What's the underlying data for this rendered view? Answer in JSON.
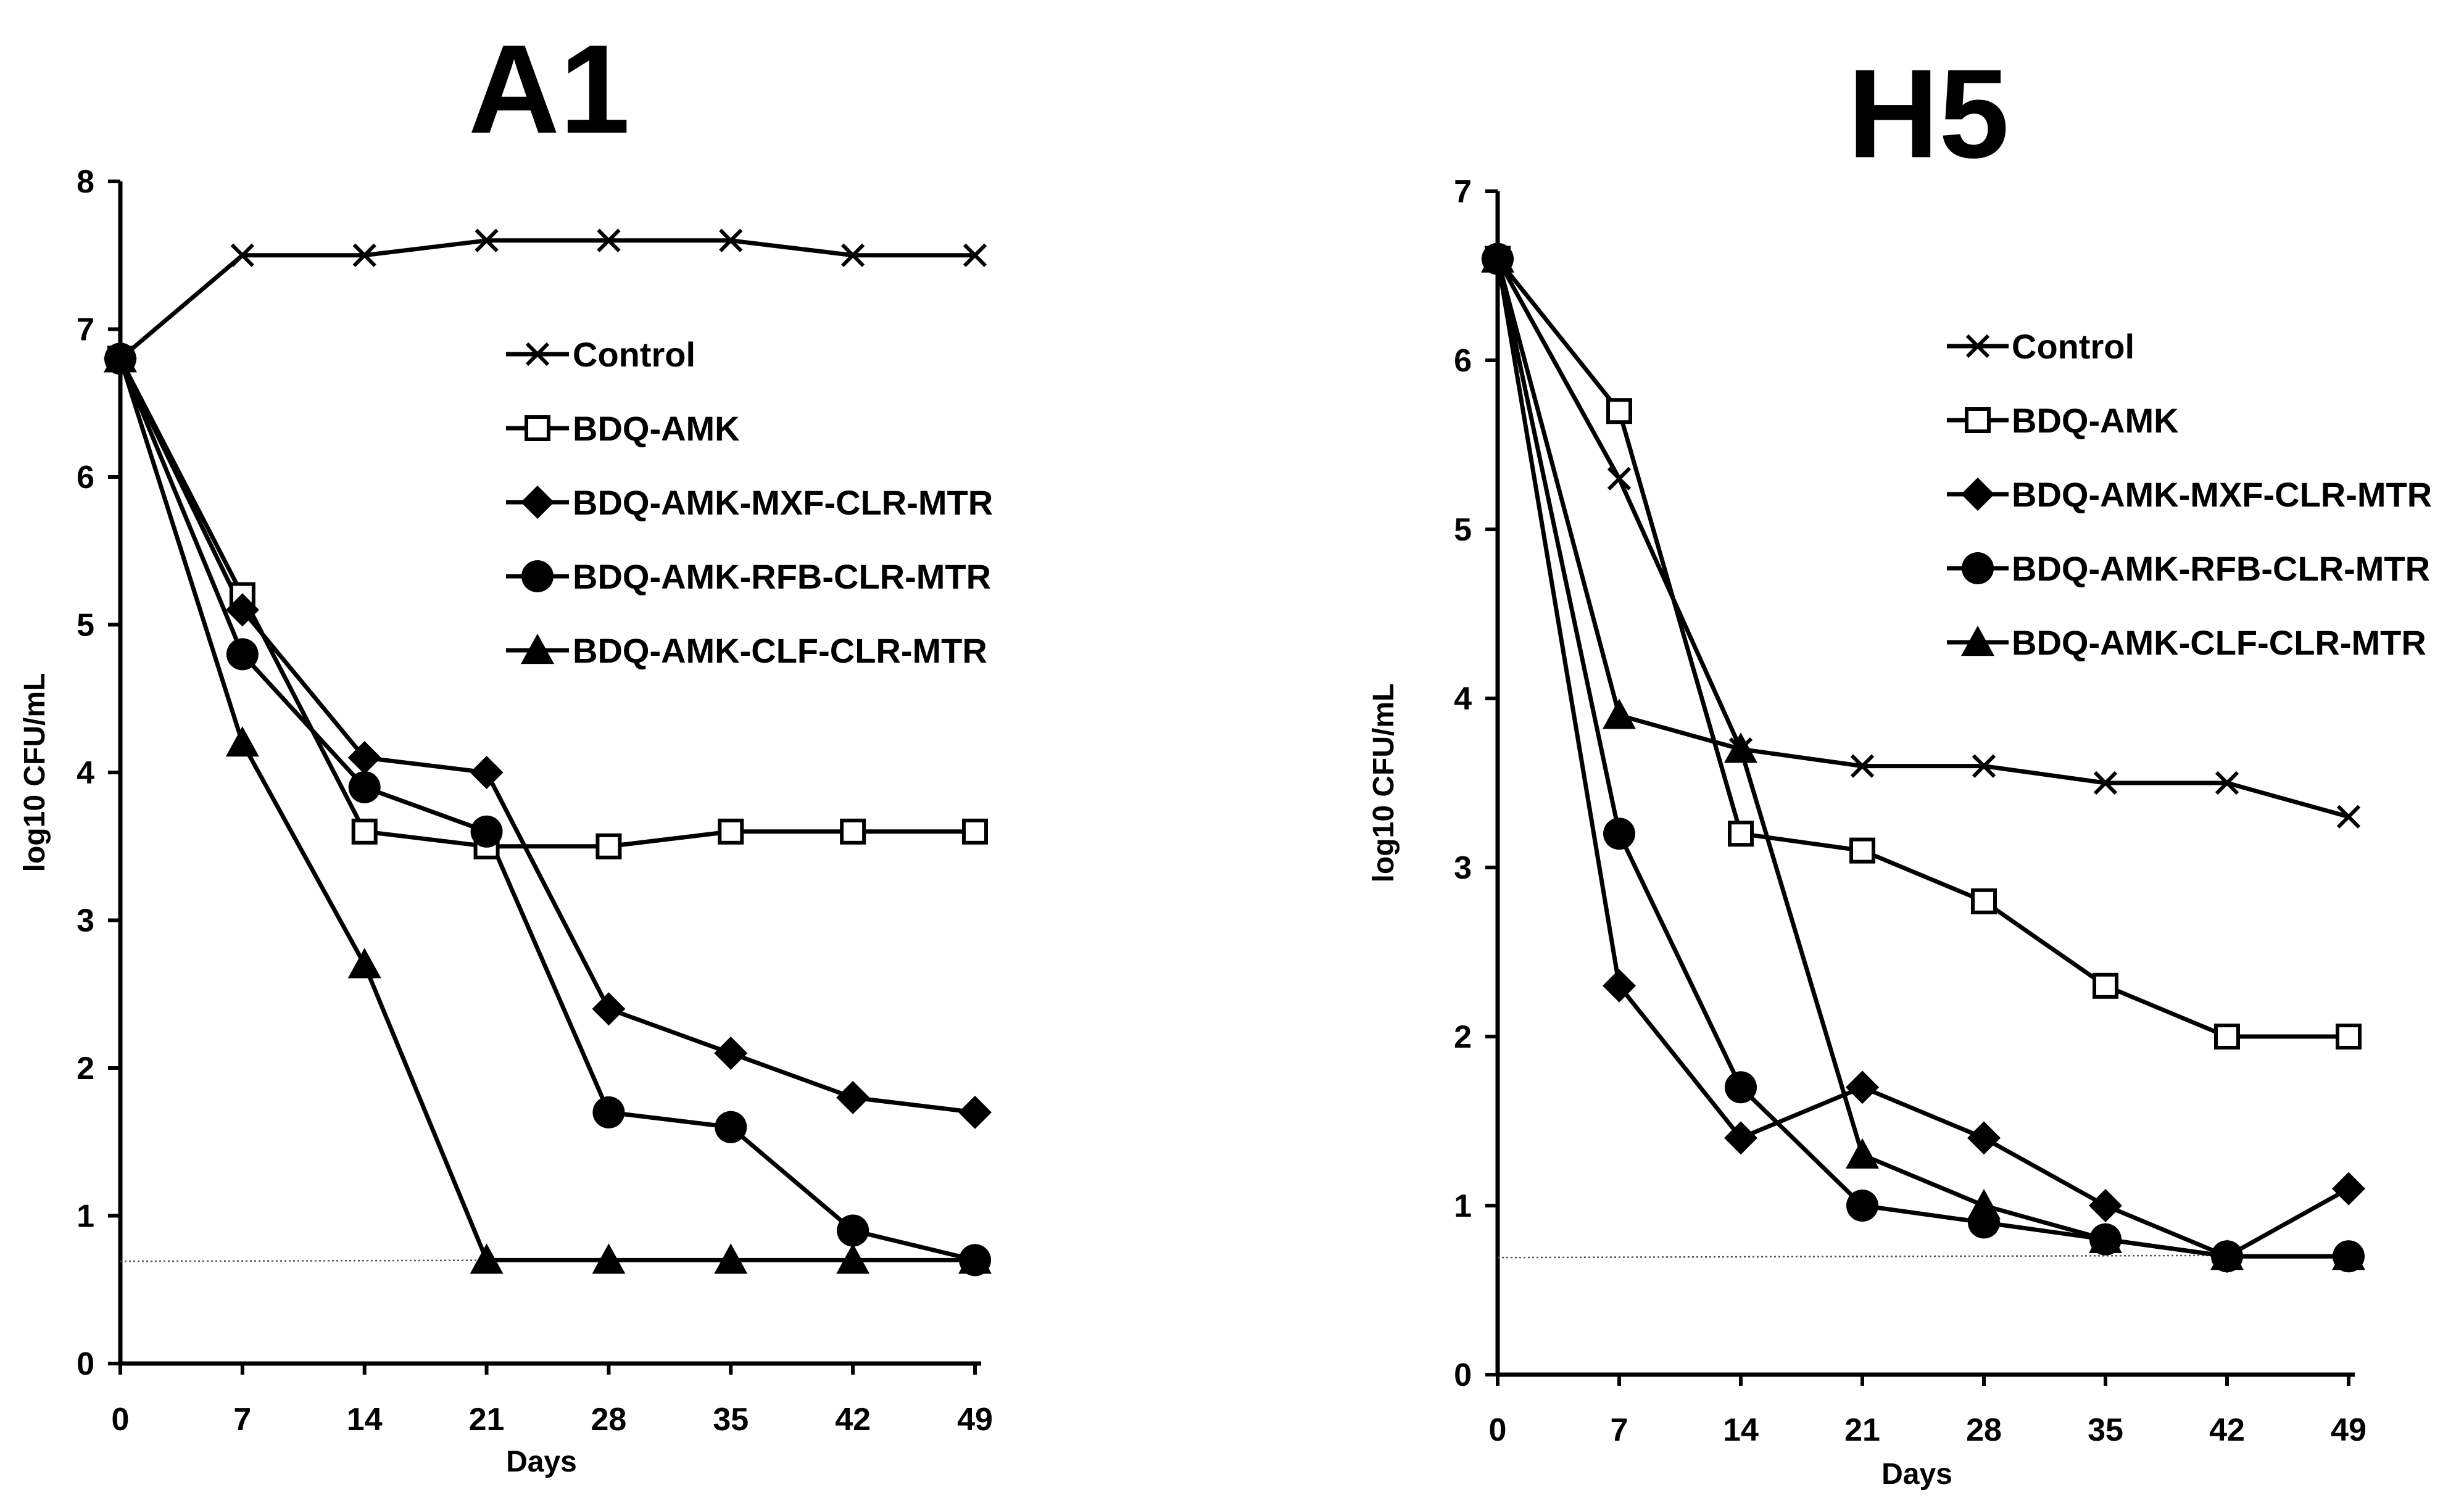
{
  "chart_data": [
    {
      "type": "line",
      "title": "A1",
      "xlabel": "Days",
      "ylabel": "log10 CFU/mL",
      "x": [
        0,
        7,
        14,
        21,
        28,
        35,
        42,
        49
      ],
      "xticks": [
        "0",
        "7",
        "14",
        "21",
        "28",
        "35",
        "42",
        "49"
      ],
      "yticks": [
        "0",
        "1",
        "2",
        "3",
        "4",
        "5",
        "6",
        "7",
        "8"
      ],
      "ylim": [
        0,
        8
      ],
      "xlim": [
        0,
        49
      ],
      "limit_of_detection": 0.7,
      "legend_position": "top-right",
      "series": [
        {
          "name": "Control",
          "marker": "x",
          "values": [
            6.8,
            7.5,
            7.5,
            7.6,
            7.6,
            7.6,
            7.5,
            7.5
          ]
        },
        {
          "name": "BDQ-AMK",
          "marker": "open-square",
          "values": [
            6.8,
            5.2,
            3.6,
            3.5,
            3.5,
            3.6,
            3.6,
            3.6
          ]
        },
        {
          "name": "BDQ-AMK-MXF-CLR-MTR",
          "marker": "diamond",
          "values": [
            6.8,
            5.1,
            4.1,
            4.0,
            2.4,
            2.1,
            1.8,
            1.7
          ]
        },
        {
          "name": "BDQ-AMK-RFB-CLR-MTR",
          "marker": "circle",
          "values": [
            6.8,
            4.8,
            3.9,
            3.6,
            1.7,
            1.6,
            0.9,
            0.7
          ]
        },
        {
          "name": "BDQ-AMK-CLF-CLR-MTR",
          "marker": "triangle",
          "values": [
            6.8,
            4.2,
            2.7,
            0.7,
            0.7,
            0.7,
            0.7,
            0.7
          ]
        }
      ]
    },
    {
      "type": "line",
      "title": "H5",
      "xlabel": "Days",
      "ylabel": "log10 CFU/mL",
      "x": [
        0,
        7,
        14,
        21,
        28,
        35,
        42,
        49
      ],
      "xticks": [
        "0",
        "7",
        "14",
        "21",
        "28",
        "35",
        "42",
        "49"
      ],
      "yticks": [
        "0",
        "1",
        "2",
        "3",
        "4",
        "5",
        "6",
        "7"
      ],
      "ylim": [
        0,
        7
      ],
      "xlim": [
        0,
        49
      ],
      "limit_of_detection": 0.7,
      "legend_position": "top-right",
      "series": [
        {
          "name": "Control",
          "marker": "x",
          "values": [
            6.6,
            5.3,
            3.7,
            3.6,
            3.6,
            3.5,
            3.5,
            3.3
          ]
        },
        {
          "name": "BDQ-AMK",
          "marker": "open-square",
          "values": [
            6.6,
            5.7,
            3.2,
            3.1,
            2.8,
            2.3,
            2.0,
            2.0
          ]
        },
        {
          "name": "BDQ-AMK-MXF-CLR-MTR",
          "marker": "diamond",
          "values": [
            6.6,
            2.3,
            1.4,
            1.7,
            1.4,
            1.0,
            0.7,
            1.1
          ]
        },
        {
          "name": "BDQ-AMK-RFB-CLR-MTR",
          "marker": "circle",
          "values": [
            6.6,
            3.2,
            1.7,
            1.0,
            0.9,
            0.8,
            0.7,
            0.7
          ]
        },
        {
          "name": "BDQ-AMK-CLF-CLR-MTR",
          "marker": "triangle",
          "values": [
            6.6,
            3.9,
            3.7,
            1.3,
            1.0,
            0.8,
            0.7,
            0.7
          ]
        }
      ]
    }
  ]
}
